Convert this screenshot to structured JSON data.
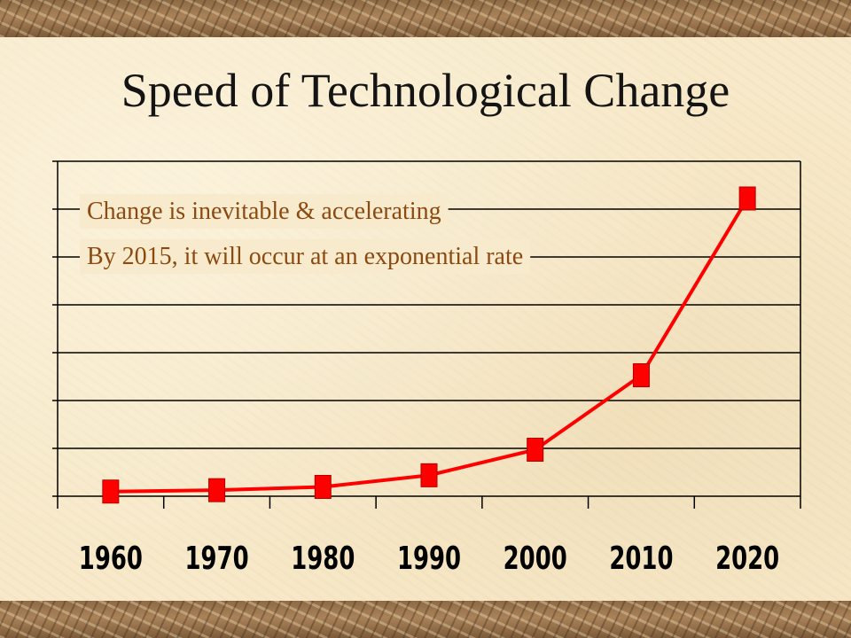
{
  "title": "Speed of Technological Change",
  "chart_data": {
    "type": "line",
    "title": "Speed of Technological Change",
    "x": [
      "1960",
      "1970",
      "1980",
      "1990",
      "2000",
      "2010",
      "2020"
    ],
    "series": [
      {
        "values": [
          1,
          1.3,
          2,
          4.5,
          10,
          26,
          64
        ],
        "color": "#ff0000"
      }
    ],
    "xlabel": "",
    "ylabel": "",
    "ylim": [
      0,
      72
    ],
    "grid": true,
    "y_tick_labels_shown": false,
    "annotations": [
      "Change is inevitable & accelerating",
      "By 2015, it will occur at an exponential rate"
    ]
  }
}
